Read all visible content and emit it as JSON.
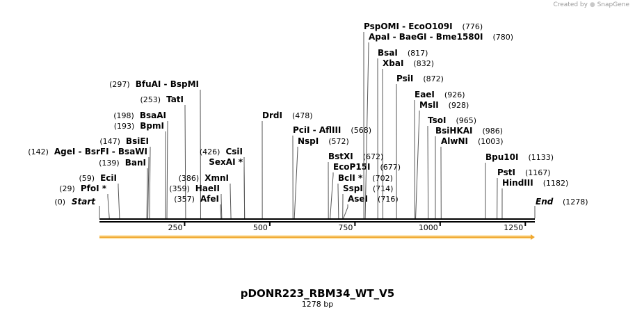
{
  "credit": {
    "prefix": "Created by",
    "brand": "SnapGene"
  },
  "plasmid": {
    "name": "pDONR223_RBM34_WT_V5",
    "length": 1278,
    "length_label": "1278 bp"
  },
  "scale": {
    "ticks": [
      250,
      500,
      750,
      1000,
      1250
    ]
  },
  "ends": {
    "start_label": "Start",
    "start_pos": "(0)",
    "end_label": "End",
    "end_pos": "(1278)"
  },
  "sites": [
    {
      "names": "PfoI *",
      "pos_label": "(29)",
      "pos": 29
    },
    {
      "names": "EciI",
      "pos_label": "(59)",
      "pos": 59
    },
    {
      "names": "BanI",
      "pos_label": "(139)",
      "pos": 139
    },
    {
      "names": "AgeI  - BsrFI  - BsaWI",
      "pos_label": "(142)",
      "pos": 142
    },
    {
      "names": "BsiEI",
      "pos_label": "(147)",
      "pos": 147
    },
    {
      "names": "BpmI",
      "pos_label": "(193)",
      "pos": 193
    },
    {
      "names": "BsaAI",
      "pos_label": "(198)",
      "pos": 198
    },
    {
      "names": "TatI",
      "pos_label": "(253)",
      "pos": 253
    },
    {
      "names": "BfuAI  - BspMI",
      "pos_label": "(297)",
      "pos": 297
    },
    {
      "names": "AfeI",
      "pos_label": "(357)",
      "pos": 357
    },
    {
      "names": "HaeII",
      "pos_label": "(359)",
      "pos": 359
    },
    {
      "names": "XmnI",
      "pos_label": "(386)",
      "pos": 386
    },
    {
      "names": "SexAI *",
      "pos_label": "",
      "pos": 426
    },
    {
      "names": "CsiI",
      "pos_label": "(426)",
      "pos": 426
    },
    {
      "names": "DrdI",
      "pos_label": "(478)",
      "pos": 478
    },
    {
      "names": "PciI  - AflIII",
      "pos_label": "(568)",
      "pos": 568
    },
    {
      "names": "NspI",
      "pos_label": "(572)",
      "pos": 572
    },
    {
      "names": "BstXI",
      "pos_label": "(672)",
      "pos": 672
    },
    {
      "names": "EcoP15I",
      "pos_label": "(677)",
      "pos": 677
    },
    {
      "names": "BclI *",
      "pos_label": "(702)",
      "pos": 702
    },
    {
      "names": "SspI",
      "pos_label": "(714)",
      "pos": 714
    },
    {
      "names": "AseI",
      "pos_label": "(716)",
      "pos": 716
    },
    {
      "names": "PspOMI  - EcoO109I",
      "pos_label": "(776)",
      "pos": 776
    },
    {
      "names": "ApaI  - BaeGI  - Bme1580I",
      "pos_label": "(780)",
      "pos": 780
    },
    {
      "names": "BsaI",
      "pos_label": "(817)",
      "pos": 817
    },
    {
      "names": "XbaI",
      "pos_label": "(832)",
      "pos": 832
    },
    {
      "names": "PsiI",
      "pos_label": "(872)",
      "pos": 872
    },
    {
      "names": "EaeI",
      "pos_label": "(926)",
      "pos": 926
    },
    {
      "names": "MslI",
      "pos_label": "(928)",
      "pos": 928
    },
    {
      "names": "TsoI",
      "pos_label": "(965)",
      "pos": 965
    },
    {
      "names": "BsiHKAI",
      "pos_label": "(986)",
      "pos": 986
    },
    {
      "names": "AlwNI",
      "pos_label": "(1003)",
      "pos": 1003
    },
    {
      "names": "Bpu10I",
      "pos_label": "(1133)",
      "pos": 1133
    },
    {
      "names": "PstI",
      "pos_label": "(1167)",
      "pos": 1167
    },
    {
      "names": "HindIII",
      "pos_label": "(1182)",
      "pos": 1182
    }
  ],
  "colors": {
    "feature_arrow": "#f0a830",
    "feature_arrow_light": "#fde8b8",
    "backbone": "#000000"
  }
}
